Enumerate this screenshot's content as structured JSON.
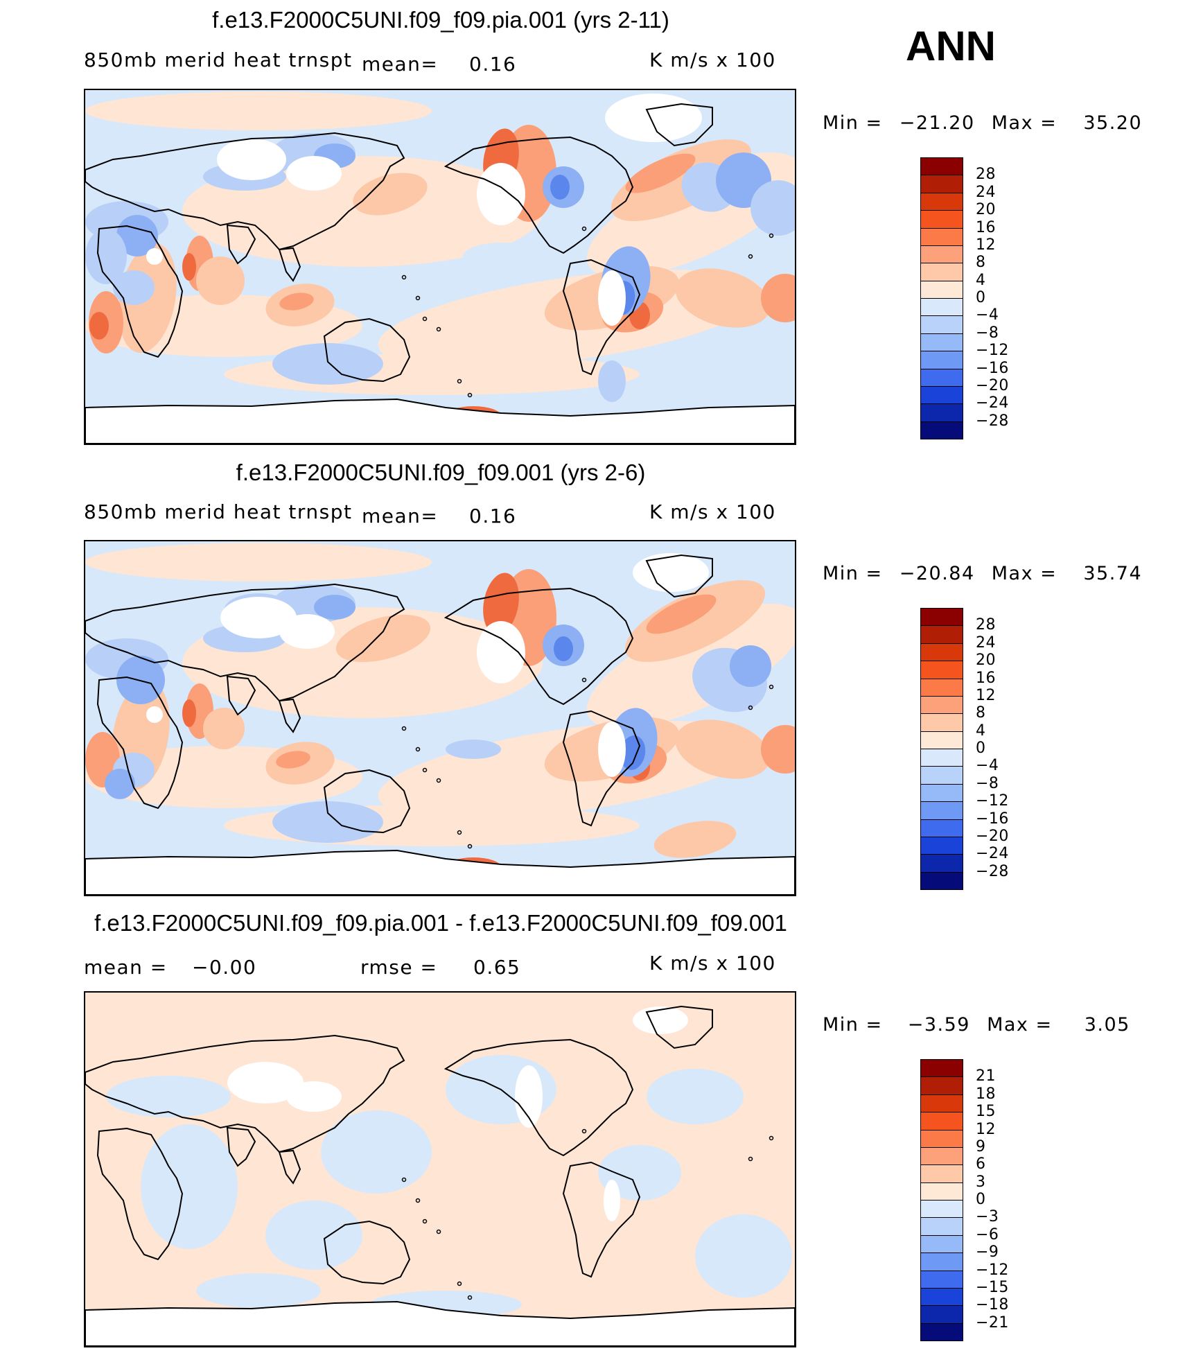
{
  "season": "ANN",
  "panels": [
    {
      "title": "f.e13.F2000C5UNI.f09_f09.pia.001 (yrs 2-11)",
      "left_label": "850mb  merid  heat  trnspt",
      "mean_label": "mean=",
      "mean_value": "0.16",
      "units": "K  m/s  x  100",
      "min_label": "Min  =",
      "min_value": "−21.20",
      "max_label": "Max  =",
      "max_value": "35.20",
      "colorbar_labels": [
        "28",
        "24",
        "20",
        "16",
        "12",
        "8",
        "4",
        "0",
        "−4",
        "−8",
        "−12",
        "−16",
        "−20",
        "−24",
        "−28"
      ]
    },
    {
      "title": "f.e13.F2000C5UNI.f09_f09.001 (yrs 2-6)",
      "left_label": "850mb  merid  heat  trnspt",
      "mean_label": "mean=",
      "mean_value": "0.16",
      "units": "K  m/s  x  100",
      "min_label": "Min  =",
      "min_value": "−20.84",
      "max_label": "Max  =",
      "max_value": "35.74",
      "colorbar_labels": [
        "28",
        "24",
        "20",
        "16",
        "12",
        "8",
        "4",
        "0",
        "−4",
        "−8",
        "−12",
        "−16",
        "−20",
        "−24",
        "−28"
      ]
    },
    {
      "title": "f.e13.F2000C5UNI.f09_f09.pia.001 - f.e13.F2000C5UNI.f09_f09.001",
      "mean_label": "mean  =",
      "mean_value": "−0.00",
      "rmse_label": "rmse  =",
      "rmse_value": "0.65",
      "units": "K  m/s  x  100",
      "min_label": "Min  =",
      "min_value": "−3.59",
      "max_label": "Max  =",
      "max_value": "3.05",
      "colorbar_labels": [
        "21",
        "18",
        "15",
        "12",
        "9",
        "6",
        "3",
        "0",
        "−3",
        "−6",
        "−9",
        "−12",
        "−15",
        "−18",
        "−21"
      ]
    }
  ],
  "colorbar_colors": [
    "#8b0000",
    "#b01e05",
    "#d8380a",
    "#f5541e",
    "#fb7a48",
    "#fca17a",
    "#fdc9a8",
    "#fee8d6",
    "#d9e9fb",
    "#b9d2fa",
    "#96b9f8",
    "#6e99f4",
    "#3f6cef",
    "#1a43da",
    "#0d27ac",
    "#060b7a"
  ],
  "map_colors": {
    "ocean_pos": "#fee5d4",
    "ocean_neg": "#d8e8fb",
    "warm1": "#fcc8a8",
    "warm2": "#fa9f78",
    "warm3": "#f06a40",
    "warm4": "#d33a12",
    "cool1": "#b8d0f8",
    "cool2": "#8cb0f3",
    "cool3": "#5b87ec",
    "cool4": "#2d57df",
    "land_line": "#000000"
  }
}
